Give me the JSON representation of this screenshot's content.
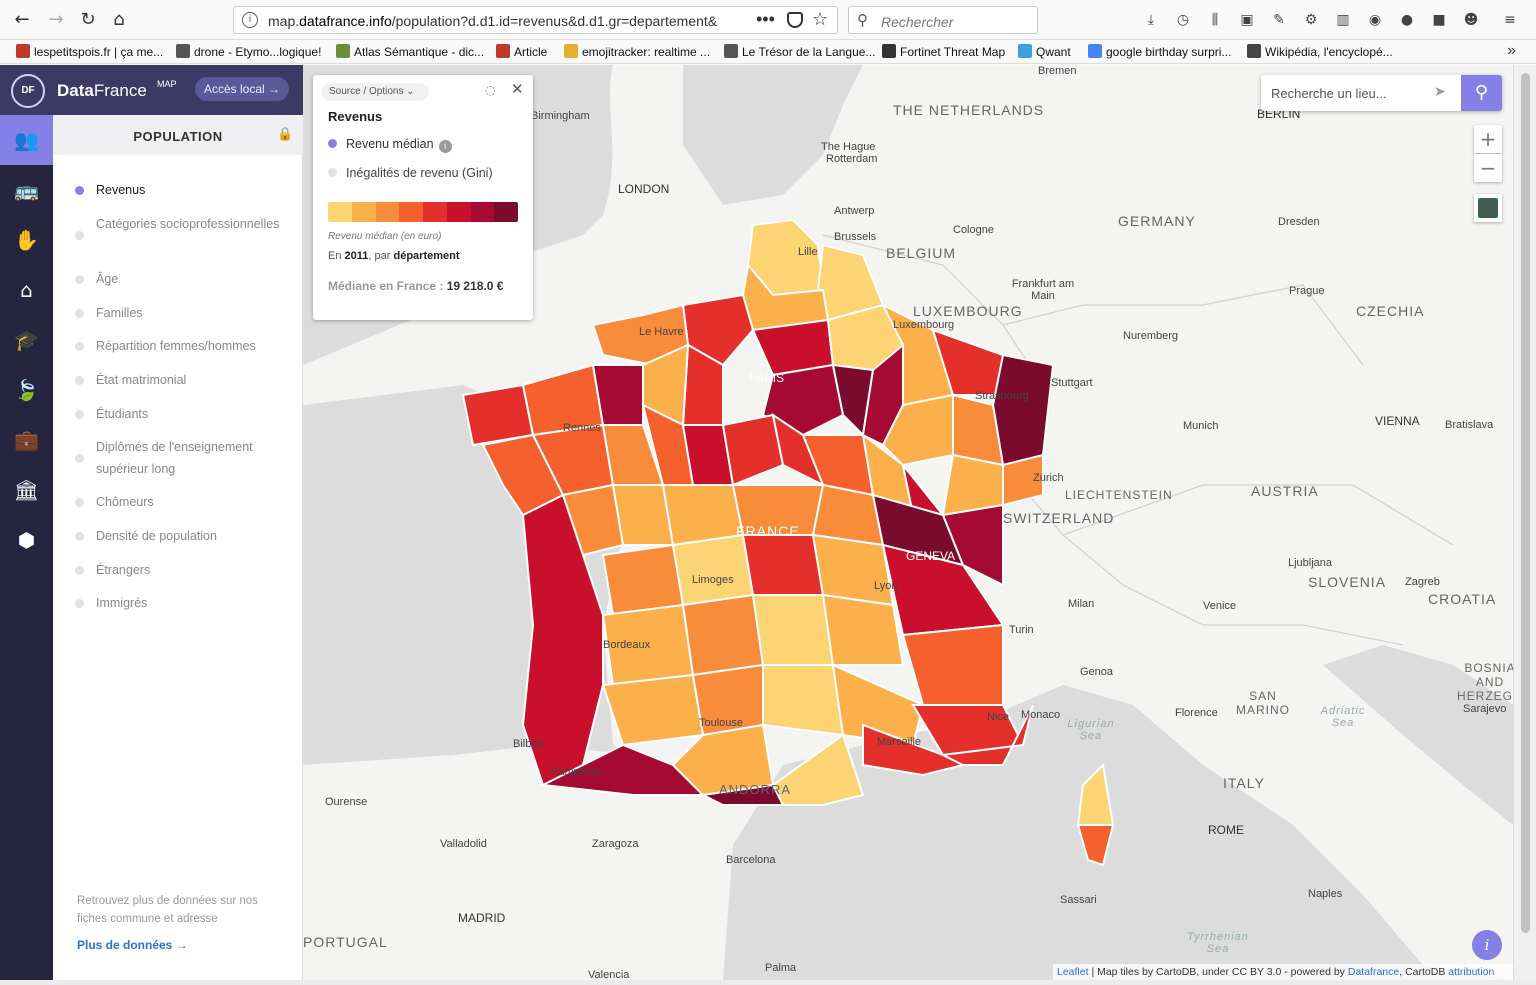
{
  "browser": {
    "url_prefix": "map.",
    "url_domain": "datafrance.info",
    "url_rest": "/population?d.d1.id=revenus&d.d1.gr=departement&",
    "search_placeholder": "Rechercher"
  },
  "bookmarks": [
    {
      "label": "lespetitspois.fr | ça me...",
      "color": "#c0392b"
    },
    {
      "label": "drone - Etymo...logique!",
      "color": "#555555"
    },
    {
      "label": "Atlas Sémantique - dic...",
      "color": "#6a8f3a"
    },
    {
      "label": "Article",
      "color": "#c0392b"
    },
    {
      "label": "emojitracker: realtime ...",
      "color": "#e0b030"
    },
    {
      "label": "Le Trésor de la Langue...",
      "color": "#555555"
    },
    {
      "label": "Fortinet Threat Map",
      "color": "#333333"
    },
    {
      "label": "Qwant",
      "color": "#3aa0e0"
    },
    {
      "label": "google birthday surpri...",
      "color": "#4285f4"
    },
    {
      "label": "Wikipédia, l'encyclopé...",
      "color": "#444444"
    }
  ],
  "brand": {
    "logo": "DF",
    "name_bold": "Data",
    "name_light": "France",
    "sup": "MAP",
    "local_btn": "Accès local →"
  },
  "side_icons": [
    {
      "name": "people-icon",
      "glyph": "👥"
    },
    {
      "name": "bus-icon",
      "glyph": "🚌"
    },
    {
      "name": "hand-icon",
      "glyph": "✋"
    },
    {
      "name": "home-icon",
      "glyph": "⌂"
    },
    {
      "name": "graduation-icon",
      "glyph": "🎓"
    },
    {
      "name": "leaf-icon",
      "glyph": "🍃"
    },
    {
      "name": "briefcase-icon",
      "glyph": "💼"
    },
    {
      "name": "institution-icon",
      "glyph": "🏛"
    },
    {
      "name": "hexagon-icon",
      "glyph": "⬢"
    }
  ],
  "panel": {
    "title": "POPULATION",
    "items": [
      "Revenus",
      "Catégories socioprofessionnelles",
      "Âge",
      "Familles",
      "Répartition femmes/hommes",
      "État matrimonial",
      "Étudiants",
      "Diplômés de l'enseignement supérieur long",
      "Chômeurs",
      "Densité de population",
      "Étrangers",
      "Immigrés"
    ],
    "active_index": 0,
    "footer_text": "Retrouvez plus de données sur nos fiches commune et adresse",
    "footer_link": "Plus de données →"
  },
  "legend": {
    "source_options": "Source / Options",
    "title": "Revenus",
    "option1": "Revenu médian",
    "option2": "Inégalités de revenu (Gini)",
    "unit": "Revenu médian (en euro)",
    "year_prefix": "En",
    "year": "2011",
    "year_mid": ", par",
    "granularity": "département",
    "median_label": "Médiane en France :",
    "median_value": "19 218.0 €",
    "scale_colors": [
      "#fdd474",
      "#fbb04c",
      "#f98c3b",
      "#f4602e",
      "#e3302a",
      "#c8102c",
      "#a40a32",
      "#7a0b2e"
    ]
  },
  "map_search": {
    "placeholder": "Recherche un lieu..."
  },
  "zoom": {
    "in": "+",
    "out": "−"
  },
  "attribution": {
    "leaflet": "Leaflet",
    "text1": " | Map tiles by CartoDB, under CC BY 3.0 - powered by ",
    "df": "Datafrance",
    "text2": ", CartoDB ",
    "attr": "attribution"
  },
  "map_labels": {
    "countries": [
      "THE NETHERLANDS",
      "BELGIUM",
      "GERMANY",
      "LUXEMBOURG",
      "CZECHIA",
      "FRANCE",
      "SWITZERLAND",
      "LIECHTENSTEIN",
      "AUSTRIA",
      "SLOVENIA",
      "CROATIA",
      "SAN MARINO",
      "BOSNIA AND HERZEGOVINA",
      "ITALY",
      "ANDORRA",
      "PORTUGAL"
    ],
    "cities": [
      "Birmingham",
      "LONDON",
      "The Hague",
      "Rotterdam",
      "Antwerp",
      "Brussels",
      "Lille",
      "Cologne",
      "Bremen",
      "BERLIN",
      "Dresden",
      "Frankfurt am Main",
      "Luxembourg",
      "Prague",
      "Nuremberg",
      "Stuttgart",
      "Strasbourg",
      "Munich",
      "VIENNA",
      "Bratislava",
      "Le Havre",
      "PARIS",
      "Rennes",
      "Zurich",
      "GENEVA",
      "Lyon",
      "Limoges",
      "Milan",
      "Turin",
      "Venice",
      "Ljubljana",
      "Zagreb",
      "Bordeaux",
      "Genoa",
      "Florence",
      "Monaco",
      "Nice",
      "Marseille",
      "Toulouse",
      "Bilbao",
      "Pamplona",
      "Ourense",
      "Valladolid",
      "Zaragoza",
      "Barcelona",
      "MADRID",
      "ROME",
      "Sassari",
      "Naples",
      "Valencia",
      "Palma",
      "Sarajevo"
    ],
    "seas": [
      "Ligurian Sea",
      "Adriatic Sea",
      "Tyrrhenian Sea"
    ]
  }
}
